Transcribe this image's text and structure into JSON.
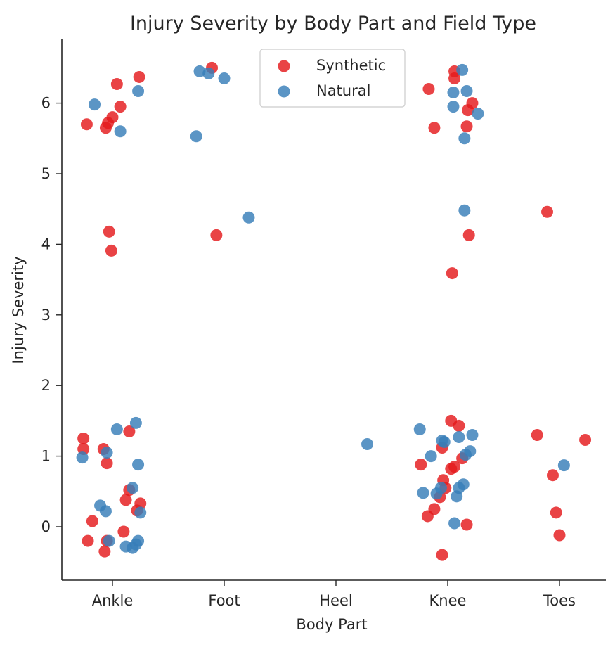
{
  "chart_data": {
    "type": "scatter",
    "title": "Injury Severity by Body Part and Field Type",
    "xlabel": "Body Part",
    "ylabel": "Injury Severity",
    "categories": [
      "Ankle",
      "Foot",
      "Heel",
      "Knee",
      "Toes"
    ],
    "yticks": [
      "0",
      "1",
      "2",
      "3",
      "4",
      "5",
      "6"
    ],
    "ylim": [
      -0.75,
      6.85
    ],
    "legend_position": "top-center",
    "grid": false,
    "series": [
      {
        "name": "Synthetic",
        "color": "#e41a1c",
        "points": [
          {
            "cat": "Ankle",
            "jitter": -0.23,
            "y": 5.7
          },
          {
            "cat": "Ankle",
            "jitter": -0.06,
            "y": 5.65
          },
          {
            "cat": "Ankle",
            "jitter": -0.04,
            "y": 5.72
          },
          {
            "cat": "Ankle",
            "jitter": 0.0,
            "y": 5.8
          },
          {
            "cat": "Ankle",
            "jitter": 0.07,
            "y": 5.95
          },
          {
            "cat": "Ankle",
            "jitter": 0.04,
            "y": 6.27
          },
          {
            "cat": "Ankle",
            "jitter": 0.24,
            "y": 6.37
          },
          {
            "cat": "Ankle",
            "jitter": -0.03,
            "y": 4.18
          },
          {
            "cat": "Ankle",
            "jitter": -0.01,
            "y": 3.91
          },
          {
            "cat": "Ankle",
            "jitter": -0.26,
            "y": 1.25
          },
          {
            "cat": "Ankle",
            "jitter": -0.26,
            "y": 1.1
          },
          {
            "cat": "Ankle",
            "jitter": -0.08,
            "y": 1.1
          },
          {
            "cat": "Ankle",
            "jitter": -0.05,
            "y": 0.9
          },
          {
            "cat": "Ankle",
            "jitter": 0.15,
            "y": 1.35
          },
          {
            "cat": "Ankle",
            "jitter": 0.15,
            "y": 0.52
          },
          {
            "cat": "Ankle",
            "jitter": 0.12,
            "y": 0.38
          },
          {
            "cat": "Ankle",
            "jitter": 0.25,
            "y": 0.33
          },
          {
            "cat": "Ankle",
            "jitter": 0.22,
            "y": 0.23
          },
          {
            "cat": "Ankle",
            "jitter": -0.18,
            "y": 0.08
          },
          {
            "cat": "Ankle",
            "jitter": -0.22,
            "y": -0.2
          },
          {
            "cat": "Ankle",
            "jitter": -0.05,
            "y": -0.2
          },
          {
            "cat": "Ankle",
            "jitter": 0.1,
            "y": -0.07
          },
          {
            "cat": "Ankle",
            "jitter": -0.07,
            "y": -0.35
          },
          {
            "cat": "Foot",
            "jitter": -0.11,
            "y": 6.5
          },
          {
            "cat": "Foot",
            "jitter": -0.07,
            "y": 4.13
          },
          {
            "cat": "Knee",
            "jitter": -0.17,
            "y": 6.2
          },
          {
            "cat": "Knee",
            "jitter": 0.06,
            "y": 6.45
          },
          {
            "cat": "Knee",
            "jitter": 0.06,
            "y": 6.35
          },
          {
            "cat": "Knee",
            "jitter": 0.22,
            "y": 6.0
          },
          {
            "cat": "Knee",
            "jitter": 0.18,
            "y": 5.9
          },
          {
            "cat": "Knee",
            "jitter": -0.12,
            "y": 5.65
          },
          {
            "cat": "Knee",
            "jitter": 0.17,
            "y": 5.67
          },
          {
            "cat": "Knee",
            "jitter": 0.19,
            "y": 4.13
          },
          {
            "cat": "Knee",
            "jitter": 0.04,
            "y": 3.59
          },
          {
            "cat": "Knee",
            "jitter": 0.03,
            "y": 1.5
          },
          {
            "cat": "Knee",
            "jitter": 0.1,
            "y": 1.43
          },
          {
            "cat": "Knee",
            "jitter": -0.05,
            "y": 1.12
          },
          {
            "cat": "Knee",
            "jitter": 0.13,
            "y": 0.97
          },
          {
            "cat": "Knee",
            "jitter": -0.24,
            "y": 0.88
          },
          {
            "cat": "Knee",
            "jitter": 0.03,
            "y": 0.82
          },
          {
            "cat": "Knee",
            "jitter": 0.06,
            "y": 0.85
          },
          {
            "cat": "Knee",
            "jitter": -0.04,
            "y": 0.66
          },
          {
            "cat": "Knee",
            "jitter": -0.02,
            "y": 0.55
          },
          {
            "cat": "Knee",
            "jitter": -0.07,
            "y": 0.42
          },
          {
            "cat": "Knee",
            "jitter": -0.12,
            "y": 0.25
          },
          {
            "cat": "Knee",
            "jitter": -0.18,
            "y": 0.15
          },
          {
            "cat": "Knee",
            "jitter": 0.17,
            "y": 0.03
          },
          {
            "cat": "Knee",
            "jitter": -0.05,
            "y": -0.4
          },
          {
            "cat": "Toes",
            "jitter": -0.11,
            "y": 4.46
          },
          {
            "cat": "Toes",
            "jitter": -0.2,
            "y": 1.3
          },
          {
            "cat": "Toes",
            "jitter": 0.23,
            "y": 1.23
          },
          {
            "cat": "Toes",
            "jitter": -0.06,
            "y": 0.73
          },
          {
            "cat": "Toes",
            "jitter": -0.03,
            "y": 0.2
          },
          {
            "cat": "Toes",
            "jitter": 0.0,
            "y": -0.12
          }
        ]
      },
      {
        "name": "Natural",
        "color": "#377eb8",
        "points": [
          {
            "cat": "Ankle",
            "jitter": -0.16,
            "y": 5.98
          },
          {
            "cat": "Ankle",
            "jitter": 0.07,
            "y": 5.6
          },
          {
            "cat": "Ankle",
            "jitter": 0.23,
            "y": 6.17
          },
          {
            "cat": "Ankle",
            "jitter": 0.04,
            "y": 1.38
          },
          {
            "cat": "Ankle",
            "jitter": 0.21,
            "y": 1.47
          },
          {
            "cat": "Ankle",
            "jitter": -0.05,
            "y": 1.05
          },
          {
            "cat": "Ankle",
            "jitter": -0.27,
            "y": 0.98
          },
          {
            "cat": "Ankle",
            "jitter": 0.23,
            "y": 0.88
          },
          {
            "cat": "Ankle",
            "jitter": 0.18,
            "y": 0.55
          },
          {
            "cat": "Ankle",
            "jitter": -0.11,
            "y": 0.3
          },
          {
            "cat": "Ankle",
            "jitter": -0.06,
            "y": 0.22
          },
          {
            "cat": "Ankle",
            "jitter": 0.25,
            "y": 0.2
          },
          {
            "cat": "Ankle",
            "jitter": -0.03,
            "y": -0.2
          },
          {
            "cat": "Ankle",
            "jitter": 0.23,
            "y": -0.2
          },
          {
            "cat": "Ankle",
            "jitter": 0.21,
            "y": -0.25
          },
          {
            "cat": "Ankle",
            "jitter": 0.12,
            "y": -0.28
          },
          {
            "cat": "Ankle",
            "jitter": 0.18,
            "y": -0.3
          },
          {
            "cat": "Foot",
            "jitter": -0.22,
            "y": 6.45
          },
          {
            "cat": "Foot",
            "jitter": -0.14,
            "y": 6.42
          },
          {
            "cat": "Foot",
            "jitter": 0.0,
            "y": 6.35
          },
          {
            "cat": "Foot",
            "jitter": -0.25,
            "y": 5.53
          },
          {
            "cat": "Foot",
            "jitter": 0.22,
            "y": 4.38
          },
          {
            "cat": "Heel",
            "jitter": 0.28,
            "y": 1.17
          },
          {
            "cat": "Knee",
            "jitter": 0.13,
            "y": 6.47
          },
          {
            "cat": "Knee",
            "jitter": 0.05,
            "y": 6.15
          },
          {
            "cat": "Knee",
            "jitter": 0.17,
            "y": 6.17
          },
          {
            "cat": "Knee",
            "jitter": 0.05,
            "y": 5.95
          },
          {
            "cat": "Knee",
            "jitter": 0.27,
            "y": 5.85
          },
          {
            "cat": "Knee",
            "jitter": 0.15,
            "y": 5.5
          },
          {
            "cat": "Knee",
            "jitter": 0.15,
            "y": 4.48
          },
          {
            "cat": "Knee",
            "jitter": -0.25,
            "y": 1.38
          },
          {
            "cat": "Knee",
            "jitter": -0.05,
            "y": 1.22
          },
          {
            "cat": "Knee",
            "jitter": -0.03,
            "y": 1.2
          },
          {
            "cat": "Knee",
            "jitter": 0.1,
            "y": 1.27
          },
          {
            "cat": "Knee",
            "jitter": 0.22,
            "y": 1.3
          },
          {
            "cat": "Knee",
            "jitter": 0.2,
            "y": 1.07
          },
          {
            "cat": "Knee",
            "jitter": 0.16,
            "y": 1.02
          },
          {
            "cat": "Knee",
            "jitter": -0.15,
            "y": 1.0
          },
          {
            "cat": "Knee",
            "jitter": -0.06,
            "y": 0.55
          },
          {
            "cat": "Knee",
            "jitter": 0.14,
            "y": 0.6
          },
          {
            "cat": "Knee",
            "jitter": 0.1,
            "y": 0.55
          },
          {
            "cat": "Knee",
            "jitter": -0.22,
            "y": 0.48
          },
          {
            "cat": "Knee",
            "jitter": -0.1,
            "y": 0.47
          },
          {
            "cat": "Knee",
            "jitter": 0.08,
            "y": 0.43
          },
          {
            "cat": "Knee",
            "jitter": 0.06,
            "y": 0.05
          },
          {
            "cat": "Toes",
            "jitter": 0.04,
            "y": 0.87
          }
        ]
      }
    ]
  }
}
